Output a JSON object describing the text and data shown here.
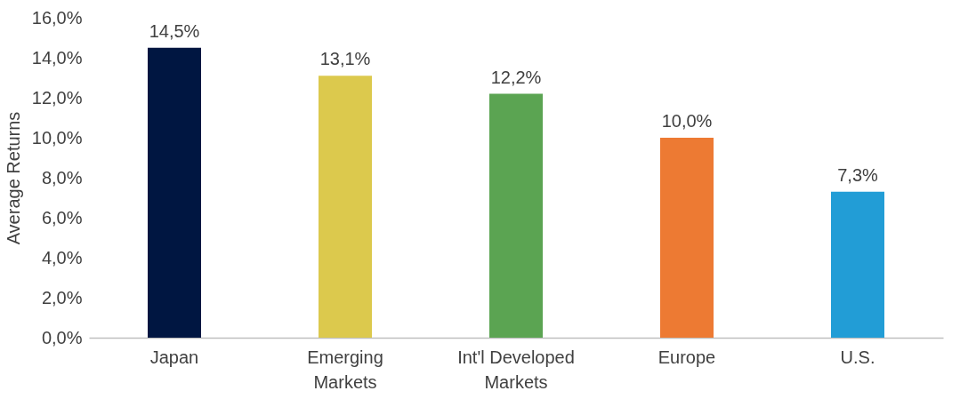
{
  "chart_data": {
    "type": "bar",
    "ylabel": "Average Returns",
    "categories": [
      "Japan",
      "Emerging Markets",
      "Int'l Developed Markets",
      "Europe",
      "U.S."
    ],
    "values": [
      14.5,
      13.1,
      12.2,
      10.0,
      7.3
    ],
    "colors": [
      "#001641",
      "#dcc94d",
      "#5ba452",
      "#ed7a33",
      "#229dd6"
    ],
    "value_labels": [
      "14,5%",
      "13,1%",
      "12,2%",
      "10,0%",
      "7,3%"
    ],
    "ylim": [
      0,
      16
    ],
    "yticks": [
      {
        "value": 0,
        "label": "0,0%"
      },
      {
        "value": 2,
        "label": "2,0%"
      },
      {
        "value": 4,
        "label": "4,0%"
      },
      {
        "value": 6,
        "label": "6,0%"
      },
      {
        "value": 8,
        "label": "8,0%"
      },
      {
        "value": 10,
        "label": "10,0%"
      },
      {
        "value": 12,
        "label": "12,0%"
      },
      {
        "value": 14,
        "label": "14,0%"
      },
      {
        "value": 16,
        "label": "16,0%"
      }
    ],
    "grid": false
  }
}
